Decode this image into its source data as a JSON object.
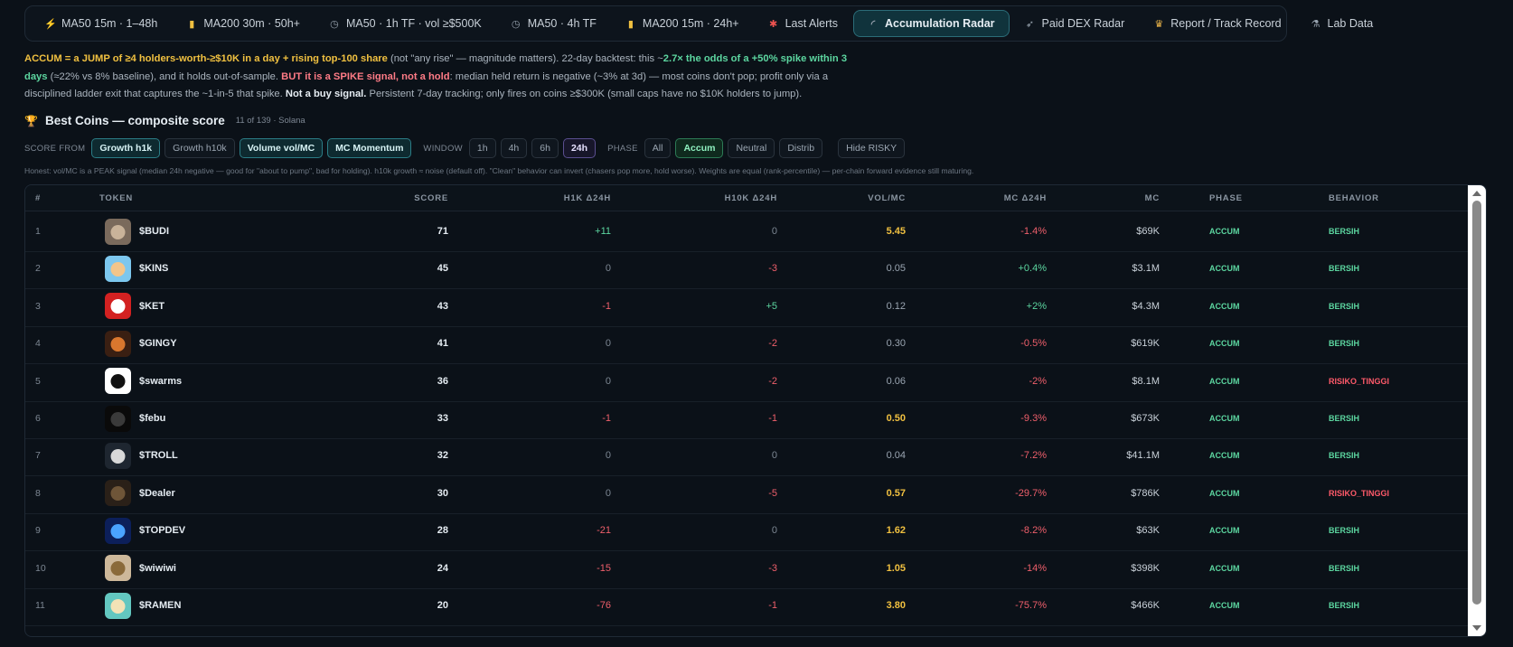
{
  "tabs": [
    {
      "label": "MA50 15m · 1–48h",
      "icon": "bolt-icon",
      "active": false
    },
    {
      "label": "MA200 30m · 50h+",
      "icon": "bar-chart-icon",
      "active": false
    },
    {
      "label": "MA50 · 1h TF · vol ≥$500K",
      "icon": "clock-icon",
      "active": false
    },
    {
      "label": "MA50 · 4h TF",
      "icon": "clock-icon",
      "active": false
    },
    {
      "label": "MA200 15m · 24h+",
      "icon": "bar-chart-icon",
      "active": false
    },
    {
      "label": "Last Alerts",
      "icon": "alert-icon",
      "active": false
    },
    {
      "label": "Accumulation Radar",
      "icon": "radar-icon",
      "active": true
    },
    {
      "label": "Paid DEX Radar",
      "icon": "rocket-icon",
      "active": false
    },
    {
      "label": "Report / Track Record",
      "icon": "trophy-icon",
      "active": false
    },
    {
      "label": "Lab Data",
      "icon": "lab-icon",
      "active": false
    }
  ],
  "description": {
    "p1_bold": "ACCUM = a JUMP of ≥4 holders-worth-≥$10K in a day + rising top-100 share",
    "p2": " (not \"any rise\" — magnitude matters). 22-day backtest: this ~",
    "p3_bold": "2.7× the odds of a +50% spike within 3 days",
    "p4": " (≈22% vs 8% baseline), and it holds out-of-sample. ",
    "p5_bold": "BUT it is a SPIKE signal, not a hold",
    "p6": ": median held return is negative (~3% at 3d) — most coins don't pop; profit only via a disciplined ladder exit that captures the ~1-in-5 that spike. ",
    "p7_bold": "Not a buy signal.",
    "p8": " Persistent 7-day tracking; only fires on coins ≥$300K (small caps have no $10K holders to jump)."
  },
  "section": {
    "title": "Best Coins — composite score",
    "subtitle": "11 of 139 · Solana",
    "icon": "trophy-icon"
  },
  "filters": {
    "score_from_label": "SCORE FROM",
    "score_from": [
      {
        "label": "Growth h1k",
        "on": true
      },
      {
        "label": "Growth h10k",
        "on": false
      },
      {
        "label": "Volume vol/MC",
        "on": true
      },
      {
        "label": "MC Momentum",
        "on": true
      }
    ],
    "window_label": "WINDOW",
    "window": [
      {
        "label": "1h",
        "on": false
      },
      {
        "label": "4h",
        "on": false
      },
      {
        "label": "6h",
        "on": false
      },
      {
        "label": "24h",
        "on": true
      }
    ],
    "phase_label": "PHASE",
    "phase": [
      {
        "label": "All",
        "on": false
      },
      {
        "label": "Accum",
        "on": true
      },
      {
        "label": "Neutral",
        "on": false
      },
      {
        "label": "Distrib",
        "on": false
      }
    ],
    "hide_risky": "Hide RISKY"
  },
  "note": "Honest: vol/MC is a PEAK signal (median 24h negative — good for \"about to pump\", bad for holding). h10k growth ≈ noise (default off). \"Clean\" behavior can invert (chasers pop more, hold worse). Weights are equal (rank-percentile) — per-chain forward evidence still maturing.",
  "table": {
    "headers": {
      "num": "#",
      "token": "TOKEN",
      "score": "SCORE",
      "h1k": "H1K Δ24H",
      "h10k": "H10K Δ24H",
      "vol": "VOL/MC",
      "mc24": "MC Δ24H",
      "mc": "MC",
      "phase": "PHASE",
      "behavior": "BEHAVIOR"
    },
    "rows": [
      {
        "num": "1",
        "token": "$BUDI",
        "score": "71",
        "h1k": "+11",
        "h10k": "0",
        "vol": "5.45",
        "mc24": "-1.4%",
        "mc": "$69K",
        "phase": "ACCUM",
        "behavior": "BERSIH",
        "avatar": "#7a6a5c",
        "avatar2": "#c9b39a"
      },
      {
        "num": "2",
        "token": "$KINS",
        "score": "45",
        "h1k": "0",
        "h10k": "-3",
        "vol": "0.05",
        "mc24": "+0.4%",
        "mc": "$3.1M",
        "phase": "ACCUM",
        "behavior": "BERSIH",
        "avatar": "#7cc7ee",
        "avatar2": "#f2c58a"
      },
      {
        "num": "3",
        "token": "$KET",
        "score": "43",
        "h1k": "-1",
        "h10k": "+5",
        "vol": "0.12",
        "mc24": "+2%",
        "mc": "$4.3M",
        "phase": "ACCUM",
        "behavior": "BERSIH",
        "avatar": "#d32121",
        "avatar2": "#ffffff"
      },
      {
        "num": "4",
        "token": "$GINGY",
        "score": "41",
        "h1k": "0",
        "h10k": "-2",
        "vol": "0.30",
        "mc24": "-0.5%",
        "mc": "$619K",
        "phase": "ACCUM",
        "behavior": "BERSIH",
        "avatar": "#3a1f12",
        "avatar2": "#d9772e"
      },
      {
        "num": "5",
        "token": "$swarms",
        "score": "36",
        "h1k": "0",
        "h10k": "-2",
        "vol": "0.06",
        "mc24": "-2%",
        "mc": "$8.1M",
        "phase": "ACCUM",
        "behavior": "RISIKO_TINGGI",
        "avatar": "#ffffff",
        "avatar2": "#111111"
      },
      {
        "num": "6",
        "token": "$febu",
        "score": "33",
        "h1k": "-1",
        "h10k": "-1",
        "vol": "0.50",
        "mc24": "-9.3%",
        "mc": "$673K",
        "phase": "ACCUM",
        "behavior": "BERSIH",
        "avatar": "#0a0a0a",
        "avatar2": "#3a3a3a"
      },
      {
        "num": "7",
        "token": "$TROLL",
        "score": "32",
        "h1k": "0",
        "h10k": "0",
        "vol": "0.04",
        "mc24": "-7.2%",
        "mc": "$41.1M",
        "phase": "ACCUM",
        "behavior": "BERSIH",
        "avatar": "#1e2630",
        "avatar2": "#d8d8d8"
      },
      {
        "num": "8",
        "token": "$Dealer",
        "score": "30",
        "h1k": "0",
        "h10k": "-5",
        "vol": "0.57",
        "mc24": "-29.7%",
        "mc": "$786K",
        "phase": "ACCUM",
        "behavior": "RISIKO_TINGGI",
        "avatar": "#2a2018",
        "avatar2": "#6e5538"
      },
      {
        "num": "9",
        "token": "$TOPDEV",
        "score": "28",
        "h1k": "-21",
        "h10k": "0",
        "vol": "1.62",
        "mc24": "-8.2%",
        "mc": "$63K",
        "phase": "ACCUM",
        "behavior": "BERSIH",
        "avatar": "#0c1f5a",
        "avatar2": "#4aa3ff"
      },
      {
        "num": "10",
        "token": "$wiwiwi",
        "score": "24",
        "h1k": "-15",
        "h10k": "-3",
        "vol": "1.05",
        "mc24": "-14%",
        "mc": "$398K",
        "phase": "ACCUM",
        "behavior": "BERSIH",
        "avatar": "#cdb89a",
        "avatar2": "#8a6a3a"
      },
      {
        "num": "11",
        "token": "$RAMEN",
        "score": "20",
        "h1k": "-76",
        "h10k": "-1",
        "vol": "3.80",
        "mc24": "-75.7%",
        "mc": "$466K",
        "phase": "ACCUM",
        "behavior": "BERSIH",
        "avatar": "#63c7c0",
        "avatar2": "#f3e2b6"
      }
    ]
  }
}
